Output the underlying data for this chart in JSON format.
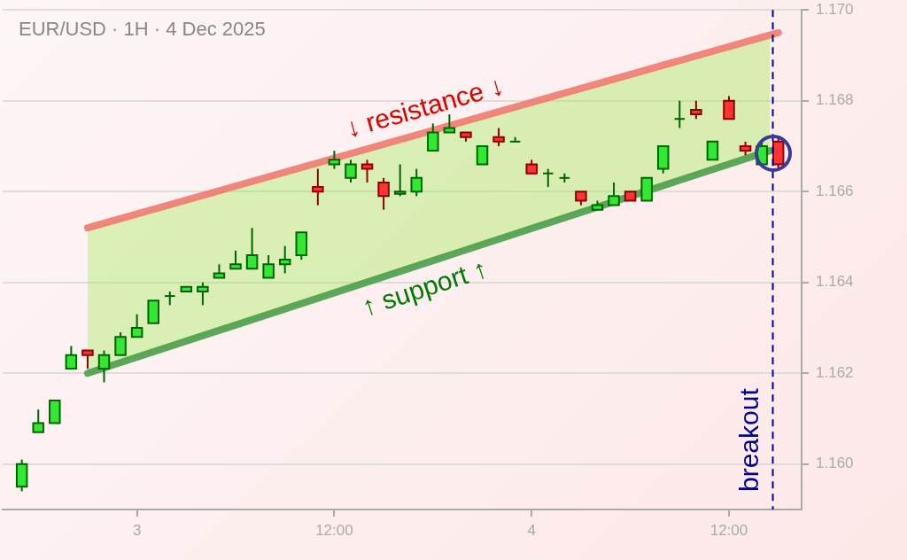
{
  "chart_data": {
    "type": "candlestick",
    "title": "EUR/USD · 1H · 4 Dec 2025",
    "x": [
      "2025-12-02T17:00",
      "2025-12-02T18:00",
      "2025-12-02T19:00",
      "2025-12-02T20:00",
      "2025-12-02T21:00",
      "2025-12-02T22:00",
      "2025-12-02T23:00",
      "2025-12-03T00:00",
      "2025-12-03T01:00",
      "2025-12-03T02:00",
      "2025-12-03T03:00",
      "2025-12-03T04:00",
      "2025-12-03T05:00",
      "2025-12-03T06:00",
      "2025-12-03T07:00",
      "2025-12-03T08:00",
      "2025-12-03T09:00",
      "2025-12-03T10:00",
      "2025-12-03T11:00",
      "2025-12-03T12:00",
      "2025-12-03T13:00",
      "2025-12-03T14:00",
      "2025-12-03T15:00",
      "2025-12-03T16:00",
      "2025-12-03T17:00",
      "2025-12-03T18:00",
      "2025-12-03T19:00",
      "2025-12-03T20:00",
      "2025-12-03T21:00",
      "2025-12-03T22:00",
      "2025-12-03T23:00",
      "2025-12-04T00:00",
      "2025-12-04T01:00",
      "2025-12-04T02:00",
      "2025-12-04T03:00",
      "2025-12-04T04:00",
      "2025-12-04T05:00",
      "2025-12-04T06:00",
      "2025-12-04T07:00",
      "2025-12-04T08:00",
      "2025-12-04T09:00",
      "2025-12-04T10:00",
      "2025-12-04T11:00",
      "2025-12-04T12:00",
      "2025-12-04T13:00",
      "2025-12-04T14:00",
      "2025-12-04T15:00"
    ],
    "ohlc": [
      [
        1.1595,
        1.1601,
        1.1594,
        1.16
      ],
      [
        1.1607,
        1.1612,
        1.1607,
        1.1609
      ],
      [
        1.1609,
        1.1614,
        1.1609,
        1.1614
      ],
      [
        1.1621,
        1.1626,
        1.1621,
        1.1624
      ],
      [
        1.1625,
        1.1625,
        1.1621,
        1.1624
      ],
      [
        1.1621,
        1.1625,
        1.1618,
        1.1624
      ],
      [
        1.1624,
        1.1629,
        1.1624,
        1.1628
      ],
      [
        1.1628,
        1.1633,
        1.1628,
        1.163
      ],
      [
        1.1631,
        1.1636,
        1.1631,
        1.1636
      ],
      [
        1.1637,
        1.1638,
        1.1635,
        1.1637
      ],
      [
        1.1638,
        1.1639,
        1.1638,
        1.1639
      ],
      [
        1.1638,
        1.164,
        1.1635,
        1.1639
      ],
      [
        1.1641,
        1.1644,
        1.1641,
        1.1642
      ],
      [
        1.1643,
        1.1647,
        1.1643,
        1.1644
      ],
      [
        1.1643,
        1.1652,
        1.1643,
        1.1646
      ],
      [
        1.1641,
        1.1646,
        1.1641,
        1.1644
      ],
      [
        1.1644,
        1.1648,
        1.1642,
        1.1645
      ],
      [
        1.1646,
        1.1651,
        1.1645,
        1.1651
      ],
      [
        1.1661,
        1.1665,
        1.1657,
        1.166
      ],
      [
        1.1666,
        1.1669,
        1.1665,
        1.1667
      ],
      [
        1.1663,
        1.1667,
        1.1662,
        1.1666
      ],
      [
        1.1666,
        1.1667,
        1.1662,
        1.1665
      ],
      [
        1.1662,
        1.1663,
        1.1656,
        1.1659
      ],
      [
        1.16595,
        1.1666,
        1.1659,
        1.166
      ],
      [
        1.166,
        1.1665,
        1.1659,
        1.1663
      ],
      [
        1.1669,
        1.1675,
        1.1669,
        1.1673
      ],
      [
        1.1673,
        1.1677,
        1.1673,
        1.1674
      ],
      [
        1.1673,
        1.1673,
        1.1671,
        1.1672
      ],
      [
        1.1666,
        1.167,
        1.1666,
        1.167
      ],
      [
        1.1672,
        1.1674,
        1.167,
        1.1671
      ],
      [
        1.1671,
        1.1672,
        1.1671,
        1.1671
      ],
      [
        1.1666,
        1.1667,
        1.1664,
        1.1664
      ],
      [
        1.1664,
        1.1665,
        1.1661,
        1.1664
      ],
      [
        1.1663,
        1.1664,
        1.1662,
        1.1663
      ],
      [
        1.166,
        1.166,
        1.1657,
        1.1658
      ],
      [
        1.1656,
        1.1658,
        1.1656,
        1.1657
      ],
      [
        1.1657,
        1.1662,
        1.1657,
        1.1659
      ],
      [
        1.166,
        1.166,
        1.1658,
        1.1658
      ],
      [
        1.1658,
        1.1663,
        1.1658,
        1.1663
      ],
      [
        1.1665,
        1.167,
        1.1664,
        1.167
      ],
      [
        1.1676,
        1.168,
        1.1674,
        1.1676
      ],
      [
        1.1678,
        1.168,
        1.1676,
        1.1677
      ],
      [
        1.1667,
        1.1671,
        1.1667,
        1.1671
      ],
      [
        1.168,
        1.1681,
        1.1676,
        1.1676
      ],
      [
        1.167,
        1.1671,
        1.1668,
        1.1669
      ],
      [
        1.1666,
        1.1671,
        1.1666,
        1.167
      ],
      [
        1.1671,
        1.1672,
        1.1665,
        1.1666
      ]
    ],
    "series": [
      {
        "type": "line",
        "name": "↓ resistance ↓",
        "color": "#f07a70",
        "x": [
          "2025-12-02T21:00",
          "2025-12-04T15:00"
        ],
        "values": [
          1.1652,
          1.1695
        ]
      },
      {
        "type": "line",
        "name": "↑ support ↑",
        "color": "#4a9e4a",
        "x": [
          "2025-12-02T21:00",
          "2025-12-04T14:30"
        ],
        "values": [
          1.162,
          1.1669
        ],
        "lower": [
          1.162,
          1.1669
        ],
        "upper": [
          1.1652,
          1.1694
        ]
      }
    ],
    "xlim": [
      "2025-12-02T15:50",
      "2025-12-04T16:25"
    ],
    "xticks": [
      {
        "value": "2025-12-03T00:00",
        "label": "3"
      },
      {
        "value": "2025-12-03T12:00",
        "label": "12:00"
      },
      {
        "value": "2025-12-04T00:00",
        "label": "4"
      },
      {
        "value": "2025-12-04T12:00",
        "label": "12:00"
      }
    ],
    "ylim": [
      1.159,
      1.17
    ],
    "yticks": [
      {
        "value": 1.16,
        "label": "1.160"
      },
      {
        "value": 1.162,
        "label": "1.162"
      },
      {
        "value": 1.164,
        "label": "1.164"
      },
      {
        "value": 1.166,
        "label": "1.166"
      },
      {
        "value": 1.168,
        "label": "1.168"
      },
      {
        "value": 1.17,
        "label": "1.170"
      }
    ],
    "ref_lines": [
      {
        "axis": "x",
        "value": "2025-12-04T14:40",
        "label": "breakout",
        "color": "#00008b",
        "line_style": "dashed"
      }
    ],
    "grid": "y",
    "legend": false
  }
}
